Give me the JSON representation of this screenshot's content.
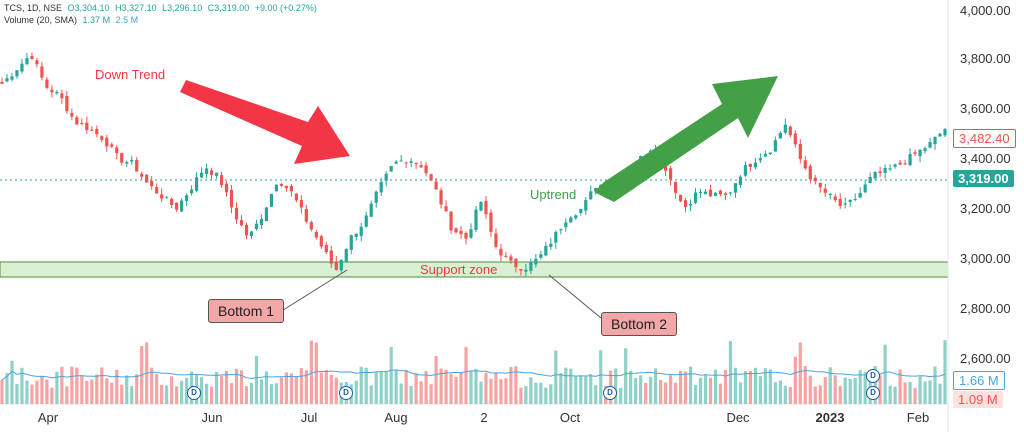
{
  "legend": {
    "symbol": "TCS, 1D, NSE",
    "open": "O3,304.10",
    "high": "H3,327.10",
    "low": "L3,296.10",
    "close": "C3,319.00",
    "change": "+9.00 (+0.27%)",
    "volume_label": "Volume (20, SMA)",
    "volume_value": "1.37 M",
    "volume_sma": "2.5 M"
  },
  "annotations": {
    "down_trend": "Down Trend",
    "uptrend": "Uptrend",
    "support_zone": "Support zone",
    "bottom1": "Bottom 1",
    "bottom2": "Bottom 2"
  },
  "price_axis": {
    "ticks": [
      "4,000.00",
      "3,800.00",
      "3,600.00",
      "3,400.00",
      "3,200.00",
      "3,000.00",
      "2,800.00",
      "2,600.00"
    ],
    "last_price_tag": "3,482.40",
    "current_price_tag": "3,319.00",
    "volume_sma_tag": "1.66 M",
    "volume_tag": "1.09 M"
  },
  "time_axis": {
    "labels": [
      "Apr",
      "Jun",
      "Jul",
      "Aug",
      "2",
      "Oct",
      "Dec",
      "2023",
      "Feb"
    ]
  },
  "dividend_marker": "D",
  "colors": {
    "up": "#26a69a",
    "down": "#ef5350",
    "support_fill": "#d9f0d3",
    "arrow_down": "#f23645",
    "arrow_up": "#43a047",
    "sma_line": "#4aa3df"
  },
  "chart_data": {
    "type": "candlestick",
    "title": "TCS, 1D, NSE",
    "y_range": [
      2450,
      4000
    ],
    "price_ticks": [
      4000,
      3800,
      3600,
      3400,
      3200,
      3000,
      2800,
      2600
    ],
    "support_zone": [
      2915,
      3000
    ],
    "current_price": 3319,
    "last_price": 3482.4,
    "close_path": [
      3700,
      3760,
      3820,
      3690,
      3650,
      3550,
      3520,
      3480,
      3400,
      3380,
      3300,
      3250,
      3200,
      3280,
      3370,
      3320,
      3180,
      3080,
      3180,
      3320,
      3260,
      3150,
      3050,
      2950,
      3080,
      3150,
      3280,
      3380,
      3400,
      3370,
      3260,
      3120,
      3080,
      3230,
      3050,
      2980,
      2960,
      3000,
      3080,
      3170,
      3200,
      3300,
      3280,
      3310,
      3400,
      3460,
      3330,
      3200,
      3270,
      3250,
      3250,
      3350,
      3400,
      3440,
      3540,
      3400,
      3300,
      3250,
      3200,
      3250,
      3330,
      3350,
      3380,
      3420,
      3460,
      3520
    ]
  }
}
